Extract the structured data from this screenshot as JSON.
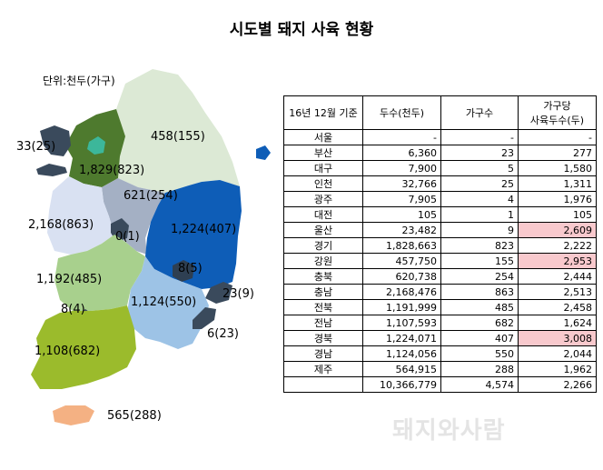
{
  "title": "시도별 돼지 사육 현황",
  "unit_label": "단위:천두(가구)",
  "watermark": "돼지와사람",
  "table": {
    "headers": [
      "16년 12월 기준",
      "두수(천두)",
      "가구수",
      "가구당\n사육두수(두)"
    ],
    "rows": [
      {
        "region": "서울",
        "heads": "-",
        "farms": "-",
        "per_farm": "-",
        "highlight": false
      },
      {
        "region": "부산",
        "heads": "6,360",
        "farms": "23",
        "per_farm": "277",
        "highlight": false
      },
      {
        "region": "대구",
        "heads": "7,900",
        "farms": "5",
        "per_farm": "1,580",
        "highlight": false
      },
      {
        "region": "인천",
        "heads": "32,766",
        "farms": "25",
        "per_farm": "1,311",
        "highlight": false
      },
      {
        "region": "광주",
        "heads": "7,905",
        "farms": "4",
        "per_farm": "1,976",
        "highlight": false
      },
      {
        "region": "대전",
        "heads": "105",
        "farms": "1",
        "per_farm": "105",
        "highlight": false
      },
      {
        "region": "울산",
        "heads": "23,482",
        "farms": "9",
        "per_farm": "2,609",
        "highlight": true
      },
      {
        "region": "경기",
        "heads": "1,828,663",
        "farms": "823",
        "per_farm": "2,222",
        "highlight": false
      },
      {
        "region": "강원",
        "heads": "457,750",
        "farms": "155",
        "per_farm": "2,953",
        "highlight": true
      },
      {
        "region": "충북",
        "heads": "620,738",
        "farms": "254",
        "per_farm": "2,444",
        "highlight": false
      },
      {
        "region": "충남",
        "heads": "2,168,476",
        "farms": "863",
        "per_farm": "2,513",
        "highlight": false
      },
      {
        "region": "전북",
        "heads": "1,191,999",
        "farms": "485",
        "per_farm": "2,458",
        "highlight": false
      },
      {
        "region": "전남",
        "heads": "1,107,593",
        "farms": "682",
        "per_farm": "1,624",
        "highlight": false
      },
      {
        "region": "경북",
        "heads": "1,224,071",
        "farms": "407",
        "per_farm": "3,008",
        "highlight": true
      },
      {
        "region": "경남",
        "heads": "1,124,056",
        "farms": "550",
        "per_farm": "2,044",
        "highlight": false
      },
      {
        "region": "제주",
        "heads": "564,915",
        "farms": "288",
        "per_farm": "1,962",
        "highlight": false
      },
      {
        "region": "",
        "heads": "10,366,779",
        "farms": "4,574",
        "per_farm": "2,266",
        "highlight": false
      }
    ]
  },
  "chart_data": {
    "type": "table",
    "map_labels": [
      {
        "region": "인천",
        "text": "33(25)"
      },
      {
        "region": "경기",
        "text": "1,829(823)"
      },
      {
        "region": "강원",
        "text": "458(155)"
      },
      {
        "region": "충북",
        "text": "621(254)"
      },
      {
        "region": "충남",
        "text": "2,168(863)"
      },
      {
        "region": "대전",
        "text": "0(1)"
      },
      {
        "region": "경북",
        "text": "1,224(407)"
      },
      {
        "region": "대구",
        "text": "8(5)"
      },
      {
        "region": "울산",
        "text": "23(9)"
      },
      {
        "region": "전북",
        "text": "1,192(485)"
      },
      {
        "region": "경남",
        "text": "1,124(550)"
      },
      {
        "region": "부산",
        "text": "6(23)"
      },
      {
        "region": "광주",
        "text": "8(4)"
      },
      {
        "region": "전남",
        "text": "1,108(682)"
      },
      {
        "region": "제주",
        "text": "565(288)"
      }
    ],
    "region_colors": {
      "강원": "#dce9d5",
      "경기": "#4e7a2e",
      "서울": "#3cb79a",
      "인천": "#3a4a5c",
      "충북": "#a4b0c4",
      "충남": "#d9e1f2",
      "대전": "#3a4a5c",
      "경북": "#0e5db7",
      "대구": "#2e3f52",
      "울산": "#3a4a5c",
      "전북": "#a8d08d",
      "광주": "#3a4a5c",
      "전남": "#9bbb2c",
      "경남": "#9dc3e6",
      "부산": "#3a4a5c",
      "제주": "#f4b183",
      "highlight": "#f8c9cd"
    }
  }
}
